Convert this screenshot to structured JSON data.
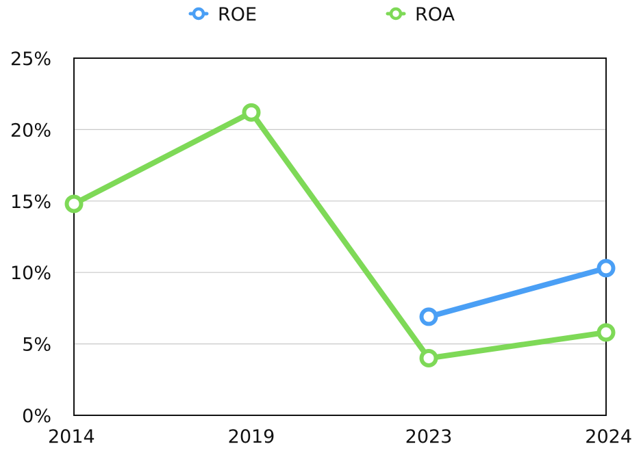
{
  "chart_data": {
    "type": "line",
    "categories": [
      "2014",
      "2019",
      "2023",
      "2024"
    ],
    "series": [
      {
        "name": "ROE",
        "color": "#4a9ff5",
        "values": [
          null,
          null,
          6.9,
          10.3
        ]
      },
      {
        "name": "ROA",
        "color": "#7ed957",
        "values": [
          14.8,
          21.2,
          4.0,
          5.8
        ]
      }
    ],
    "y_ticks": [
      "0%",
      "5%",
      "10%",
      "15%",
      "20%",
      "25%"
    ],
    "ylim": [
      0,
      25
    ],
    "title": "",
    "xlabel": "",
    "ylabel": "",
    "grid": true,
    "legend_position": "top-center"
  }
}
